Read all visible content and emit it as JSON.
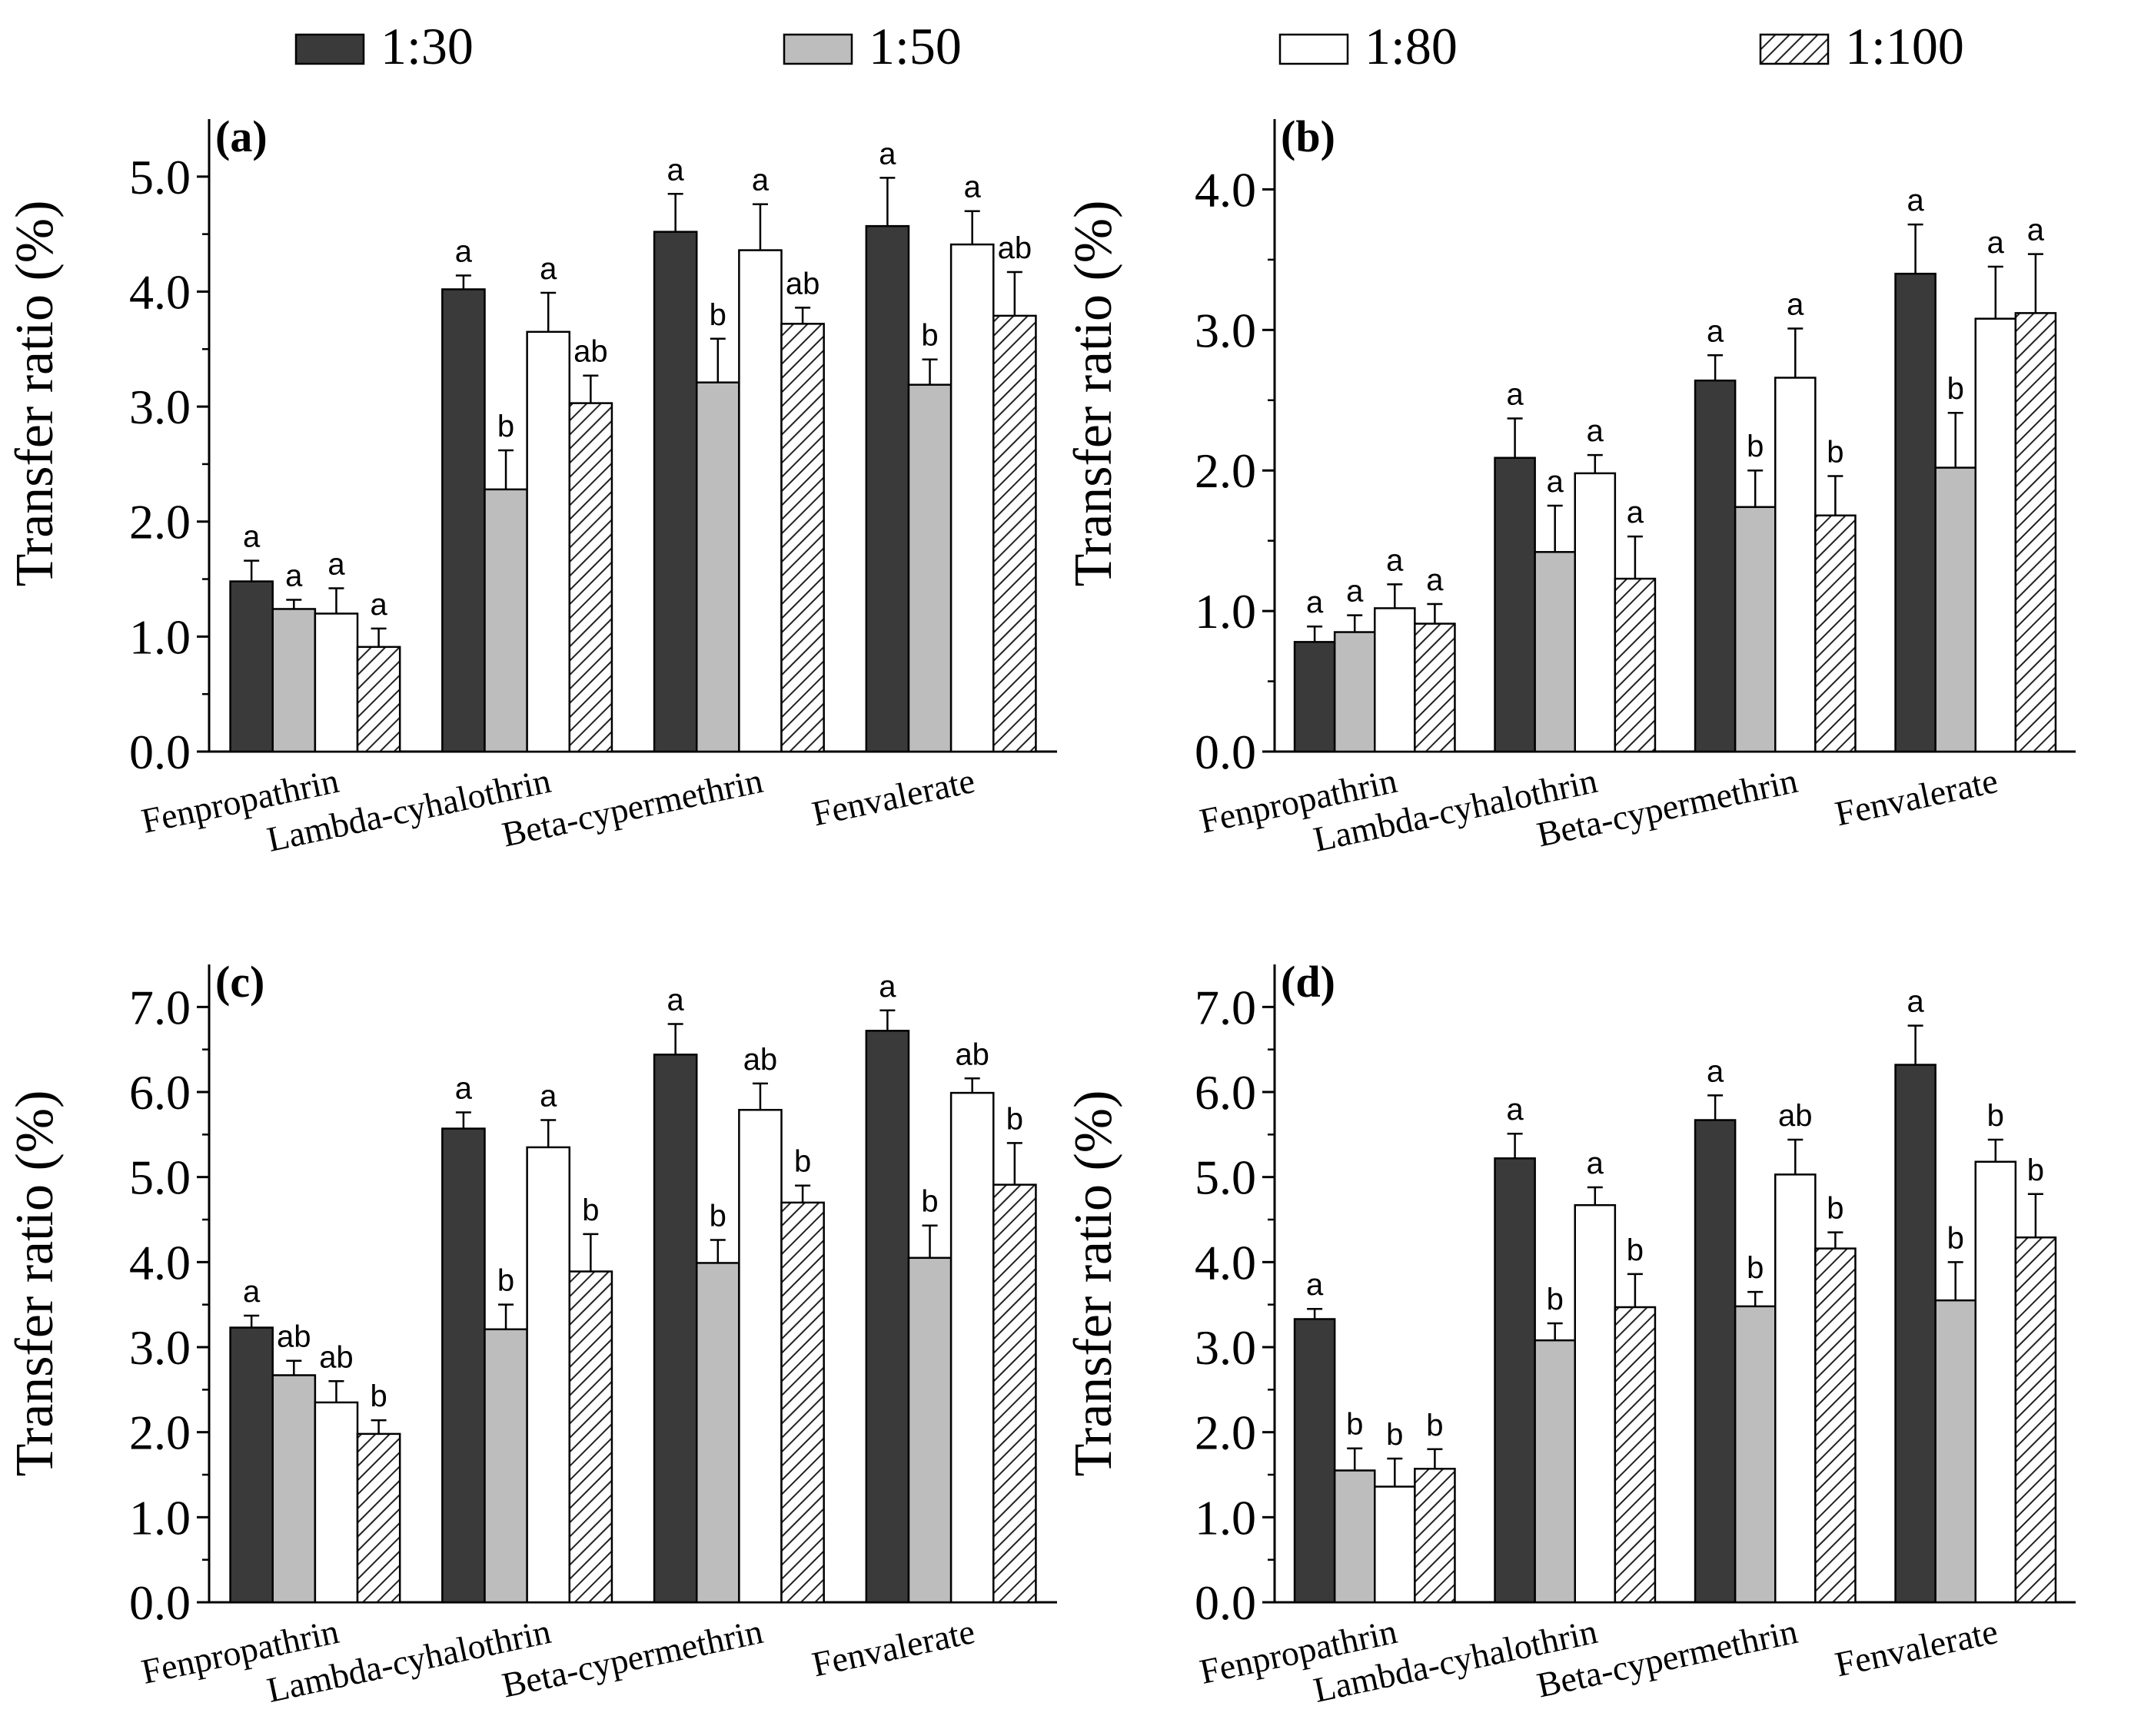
{
  "legend": {
    "items": [
      {
        "label": "1:30",
        "fill": "dark"
      },
      {
        "label": "1:50",
        "fill": "gray"
      },
      {
        "label": "1:80",
        "fill": "white"
      },
      {
        "label": "1:100",
        "fill": "hatch"
      }
    ]
  },
  "colors": {
    "dark": "#3a3a3a",
    "gray": "#bdbdbd",
    "white": "#ffffff",
    "hatch_line": "#222222",
    "axis": "#000000"
  },
  "chart_data": [
    {
      "type": "bar",
      "panel_label": "(a)",
      "ylabel": "Transfer ratio (%)",
      "xlabel": "",
      "ylim": [
        0,
        5.5
      ],
      "yticks": [
        "0.0",
        "1.0",
        "2.0",
        "3.0",
        "4.0",
        "5.0"
      ],
      "categories": [
        "Fenpropathrin",
        "Lambda-cyhalothrin",
        "Beta-cypermethrin",
        "Fenvalerate"
      ],
      "series": [
        {
          "name": "1:30",
          "values": [
            1.48,
            4.02,
            4.52,
            4.57
          ],
          "errors": [
            0.18,
            0.12,
            0.33,
            0.42
          ],
          "letters": [
            "a",
            "a",
            "a",
            "a"
          ]
        },
        {
          "name": "1:50",
          "values": [
            1.24,
            2.28,
            3.21,
            3.19
          ],
          "errors": [
            0.08,
            0.34,
            0.38,
            0.22
          ],
          "letters": [
            "a",
            "b",
            "b",
            "b"
          ]
        },
        {
          "name": "1:80",
          "values": [
            1.2,
            3.65,
            4.36,
            4.41
          ],
          "errors": [
            0.22,
            0.34,
            0.4,
            0.29
          ],
          "letters": [
            "a",
            "a",
            "a",
            "a"
          ]
        },
        {
          "name": "1:100",
          "values": [
            0.91,
            3.03,
            3.72,
            3.79
          ],
          "errors": [
            0.16,
            0.24,
            0.14,
            0.38
          ],
          "letters": [
            "a",
            "ab",
            "ab",
            "ab"
          ]
        }
      ]
    },
    {
      "type": "bar",
      "panel_label": "(b)",
      "ylabel": "Transfer ratio (%)",
      "xlabel": "",
      "ylim": [
        0,
        4.5
      ],
      "yticks": [
        "0.0",
        "1.0",
        "2.0",
        "3.0",
        "4.0"
      ],
      "categories": [
        "Fenpropathrin",
        "Lambda-cyhalothrin",
        "Beta-cypermethrin",
        "Fenvalerate"
      ],
      "series": [
        {
          "name": "1:30",
          "values": [
            0.78,
            2.09,
            2.64,
            3.4
          ],
          "errors": [
            0.11,
            0.28,
            0.18,
            0.35
          ],
          "letters": [
            "a",
            "a",
            "a",
            "a"
          ]
        },
        {
          "name": "1:50",
          "values": [
            0.85,
            1.42,
            1.74,
            2.02
          ],
          "errors": [
            0.12,
            0.33,
            0.26,
            0.39
          ],
          "letters": [
            "a",
            "a",
            "b",
            "b"
          ]
        },
        {
          "name": "1:80",
          "values": [
            1.02,
            1.98,
            2.66,
            3.08
          ],
          "errors": [
            0.17,
            0.13,
            0.35,
            0.37
          ],
          "letters": [
            "a",
            "a",
            "a",
            "a"
          ]
        },
        {
          "name": "1:100",
          "values": [
            0.91,
            1.23,
            1.68,
            3.12
          ],
          "errors": [
            0.14,
            0.3,
            0.28,
            0.42
          ],
          "letters": [
            "a",
            "a",
            "b",
            "a"
          ]
        }
      ]
    },
    {
      "type": "bar",
      "panel_label": "(c)",
      "ylabel": "Transfer ratio (%)",
      "xlabel": "",
      "ylim": [
        0,
        7.5
      ],
      "yticks": [
        "0.0",
        "1.0",
        "2.0",
        "3.0",
        "4.0",
        "5.0",
        "6.0",
        "7.0"
      ],
      "categories": [
        "Fenpropathrin",
        "Lambda-cyhalothrin",
        "Beta-cypermethrin",
        "Fenvalerate"
      ],
      "series": [
        {
          "name": "1:30",
          "values": [
            3.23,
            5.57,
            6.44,
            6.72
          ],
          "errors": [
            0.14,
            0.19,
            0.36,
            0.24
          ],
          "letters": [
            "a",
            "a",
            "a",
            "a"
          ]
        },
        {
          "name": "1:50",
          "values": [
            2.67,
            3.21,
            3.99,
            4.05
          ],
          "errors": [
            0.17,
            0.29,
            0.27,
            0.38
          ],
          "letters": [
            "ab",
            "b",
            "b",
            "b"
          ]
        },
        {
          "name": "1:80",
          "values": [
            2.35,
            5.35,
            5.79,
            5.99
          ],
          "errors": [
            0.25,
            0.32,
            0.31,
            0.17
          ],
          "letters": [
            "ab",
            "a",
            "ab",
            "ab"
          ]
        },
        {
          "name": "1:100",
          "values": [
            1.98,
            3.89,
            4.7,
            4.91
          ],
          "errors": [
            0.16,
            0.44,
            0.2,
            0.49
          ],
          "letters": [
            "b",
            "b",
            "b",
            "b"
          ]
        }
      ]
    },
    {
      "type": "bar",
      "panel_label": "(d)",
      "ylabel": "Transfer ratio (%)",
      "xlabel": "",
      "ylim": [
        0,
        7.5
      ],
      "yticks": [
        "0.0",
        "1.0",
        "2.0",
        "3.0",
        "4.0",
        "5.0",
        "6.0",
        "7.0"
      ],
      "categories": [
        "Fenpropathrin",
        "Lambda-cyhalothrin",
        "Beta-cypermethrin",
        "Fenvalerate"
      ],
      "series": [
        {
          "name": "1:30",
          "values": [
            3.33,
            5.22,
            5.67,
            6.32
          ],
          "errors": [
            0.12,
            0.29,
            0.29,
            0.46
          ],
          "letters": [
            "a",
            "a",
            "a",
            "a"
          ]
        },
        {
          "name": "1:50",
          "values": [
            1.55,
            3.08,
            3.48,
            3.55
          ],
          "errors": [
            0.26,
            0.2,
            0.17,
            0.45
          ],
          "letters": [
            "b",
            "b",
            "b",
            "b"
          ]
        },
        {
          "name": "1:80",
          "values": [
            1.36,
            4.67,
            5.03,
            5.18
          ],
          "errors": [
            0.33,
            0.21,
            0.41,
            0.26
          ],
          "letters": [
            "b",
            "a",
            "ab",
            "b"
          ]
        },
        {
          "name": "1:100",
          "values": [
            1.57,
            3.47,
            4.16,
            4.29
          ],
          "errors": [
            0.23,
            0.39,
            0.19,
            0.51
          ],
          "letters": [
            "b",
            "b",
            "b",
            "b"
          ]
        }
      ]
    }
  ]
}
